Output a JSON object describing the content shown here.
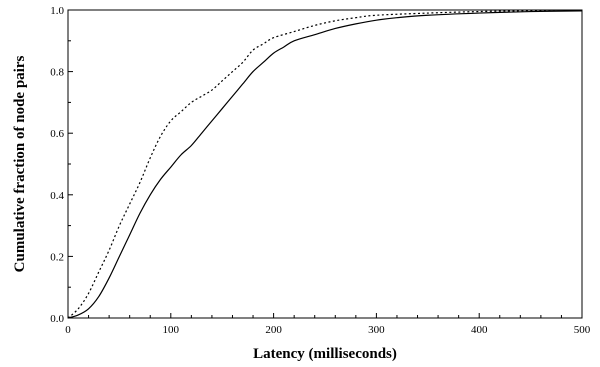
{
  "chart_data": {
    "type": "line",
    "title": "",
    "xlabel": "Latency (milliseconds)",
    "ylabel": "Cumulative fraction of node pairs",
    "xlim": [
      0,
      500
    ],
    "ylim": [
      0,
      1.0
    ],
    "x_ticks": [
      0,
      100,
      200,
      300,
      400,
      500
    ],
    "x_tick_labels": [
      "0",
      "100",
      "200",
      "300",
      "400",
      "500"
    ],
    "y_ticks": [
      0,
      0.2,
      0.4,
      0.6,
      0.8,
      1.0
    ],
    "y_tick_labels": [
      "0.0",
      "0.2",
      "0.4",
      "0.6",
      "0.8",
      "1.0"
    ],
    "grid": false,
    "legend": "none",
    "series": [
      {
        "style": "solid",
        "color": "#000000",
        "points": [
          [
            0,
            0.0
          ],
          [
            10,
            0.01
          ],
          [
            20,
            0.03
          ],
          [
            30,
            0.07
          ],
          [
            40,
            0.13
          ],
          [
            50,
            0.2
          ],
          [
            60,
            0.27
          ],
          [
            70,
            0.34
          ],
          [
            80,
            0.4
          ],
          [
            90,
            0.45
          ],
          [
            100,
            0.49
          ],
          [
            110,
            0.53
          ],
          [
            120,
            0.56
          ],
          [
            130,
            0.6
          ],
          [
            140,
            0.64
          ],
          [
            150,
            0.68
          ],
          [
            160,
            0.72
          ],
          [
            170,
            0.76
          ],
          [
            180,
            0.8
          ],
          [
            190,
            0.83
          ],
          [
            200,
            0.86
          ],
          [
            210,
            0.88
          ],
          [
            220,
            0.9
          ],
          [
            240,
            0.92
          ],
          [
            260,
            0.94
          ],
          [
            280,
            0.955
          ],
          [
            300,
            0.967
          ],
          [
            320,
            0.975
          ],
          [
            350,
            0.983
          ],
          [
            400,
            0.99
          ],
          [
            450,
            0.995
          ],
          [
            500,
            0.997
          ]
        ]
      },
      {
        "style": "dotted",
        "color": "#000000",
        "points": [
          [
            0,
            0.0
          ],
          [
            10,
            0.03
          ],
          [
            20,
            0.08
          ],
          [
            30,
            0.15
          ],
          [
            40,
            0.22
          ],
          [
            50,
            0.3
          ],
          [
            60,
            0.37
          ],
          [
            70,
            0.44
          ],
          [
            80,
            0.52
          ],
          [
            90,
            0.59
          ],
          [
            100,
            0.64
          ],
          [
            110,
            0.67
          ],
          [
            120,
            0.7
          ],
          [
            130,
            0.72
          ],
          [
            140,
            0.74
          ],
          [
            150,
            0.77
          ],
          [
            160,
            0.8
          ],
          [
            170,
            0.83
          ],
          [
            180,
            0.87
          ],
          [
            190,
            0.89
          ],
          [
            200,
            0.91
          ],
          [
            220,
            0.93
          ],
          [
            240,
            0.95
          ],
          [
            260,
            0.965
          ],
          [
            280,
            0.975
          ],
          [
            300,
            0.983
          ],
          [
            350,
            0.99
          ],
          [
            400,
            0.995
          ],
          [
            450,
            0.998
          ],
          [
            480,
            1.0
          ]
        ]
      }
    ]
  }
}
